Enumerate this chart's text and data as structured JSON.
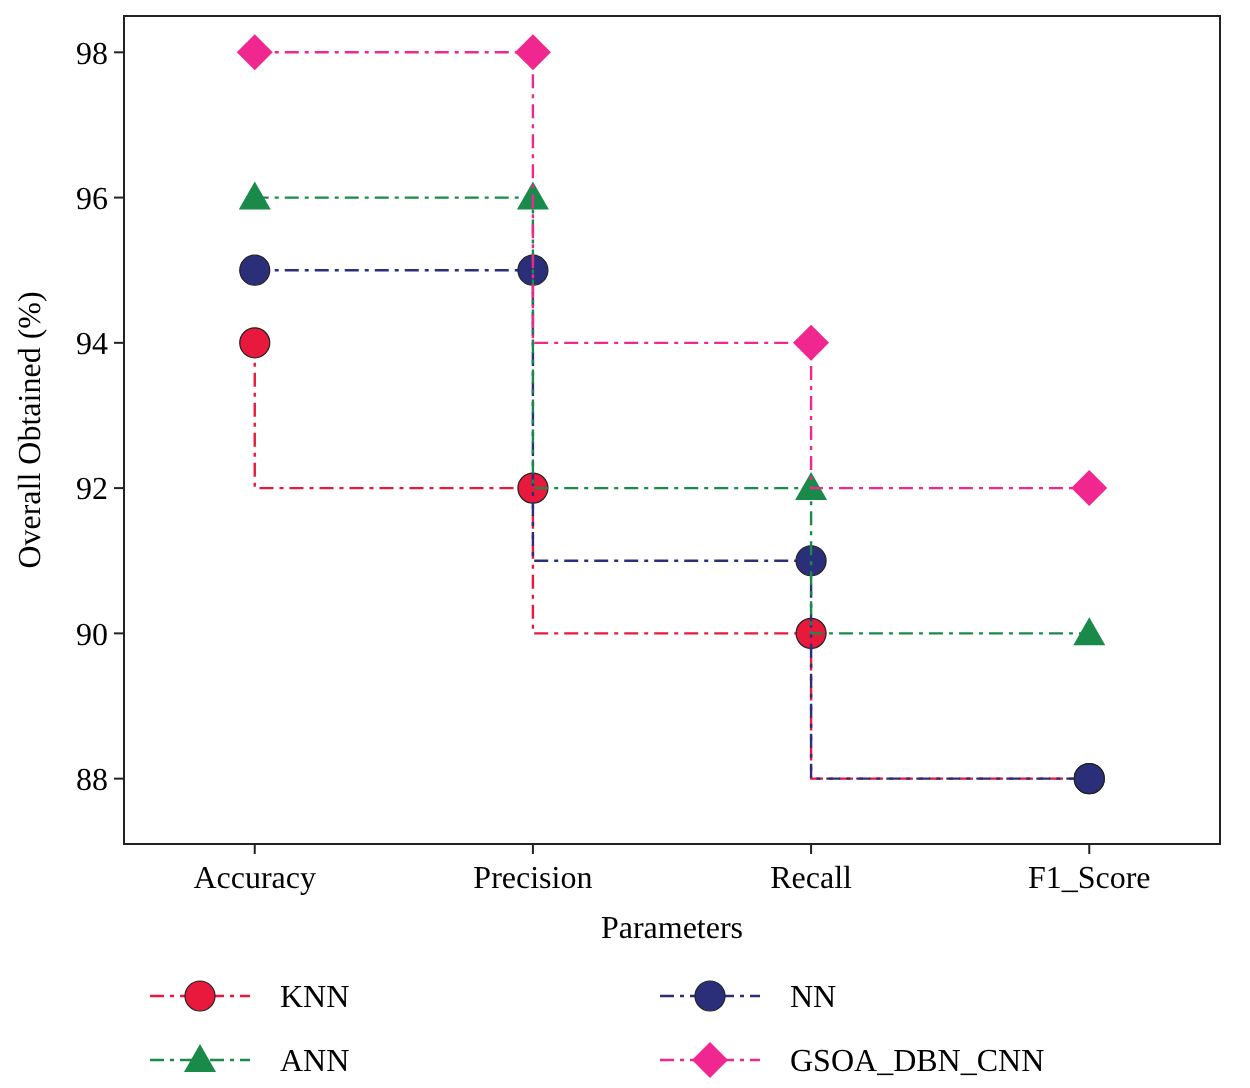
{
  "chart_data": {
    "type": "step",
    "xlabel": "Parameters",
    "ylabel": "Overall Obtained (%)",
    "categories": [
      "Accuracy",
      "Precision",
      "Recall",
      "F1_Score"
    ],
    "ylim": [
      87.1,
      98.5
    ],
    "yticks": [
      88,
      90,
      92,
      94,
      96,
      98
    ],
    "grid": false,
    "legend": "bottom",
    "line_style": "dashed",
    "series": [
      {
        "name": "KNN",
        "color": "#e8193c",
        "marker": "circle",
        "values": [
          94,
          92,
          90,
          88
        ]
      },
      {
        "name": "NN",
        "color": "#2b2f7a",
        "marker": "circle",
        "values": [
          95,
          95,
          91,
          88
        ]
      },
      {
        "name": "ANN",
        "color": "#1a8a4a",
        "marker": "triangle",
        "values": [
          96,
          96,
          92,
          90
        ]
      },
      {
        "name": "GSOA_DBN_CNN",
        "color": "#f0278f",
        "marker": "diamond",
        "values": [
          98,
          98,
          94,
          92
        ]
      }
    ]
  }
}
